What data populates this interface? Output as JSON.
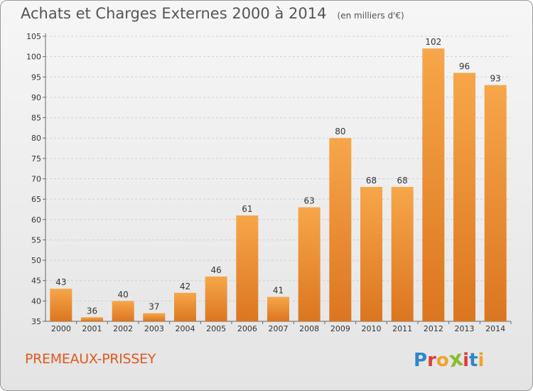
{
  "header": {
    "title": "Achats et Charges Externes 2000 à 2014",
    "unit": "(en milliers d'€)"
  },
  "footer": {
    "place": "PREMEAUX-PRISSEY",
    "logo_letters": [
      "P",
      "r",
      "o",
      "x",
      "i",
      "t",
      "i"
    ]
  },
  "colors": {
    "bar_light": "#f7a64a",
    "bar_dark": "#db7620",
    "place_text": "#e0581f",
    "logo": [
      "#2f86c9",
      "#e23a3a",
      "#f0a22b",
      "#8dbb2e",
      "#e23a3a",
      "#2f86c9",
      "#f0a22b"
    ]
  },
  "chart_data": {
    "type": "bar",
    "title": "Achats et Charges Externes 2000 à 2014",
    "subtitle": "(en milliers d'€)",
    "categories": [
      "2000",
      "2001",
      "2002",
      "2003",
      "2004",
      "2005",
      "2006",
      "2007",
      "2008",
      "2009",
      "2010",
      "2011",
      "2012",
      "2013",
      "2014"
    ],
    "values": [
      43,
      36,
      40,
      37,
      42,
      46,
      61,
      41,
      63,
      80,
      68,
      68,
      102,
      96,
      93
    ],
    "ylim": [
      35,
      105
    ],
    "yticks": [
      35,
      40,
      45,
      50,
      55,
      60,
      65,
      70,
      75,
      80,
      85,
      90,
      95,
      100,
      105
    ],
    "grid": true,
    "legend": "none"
  }
}
